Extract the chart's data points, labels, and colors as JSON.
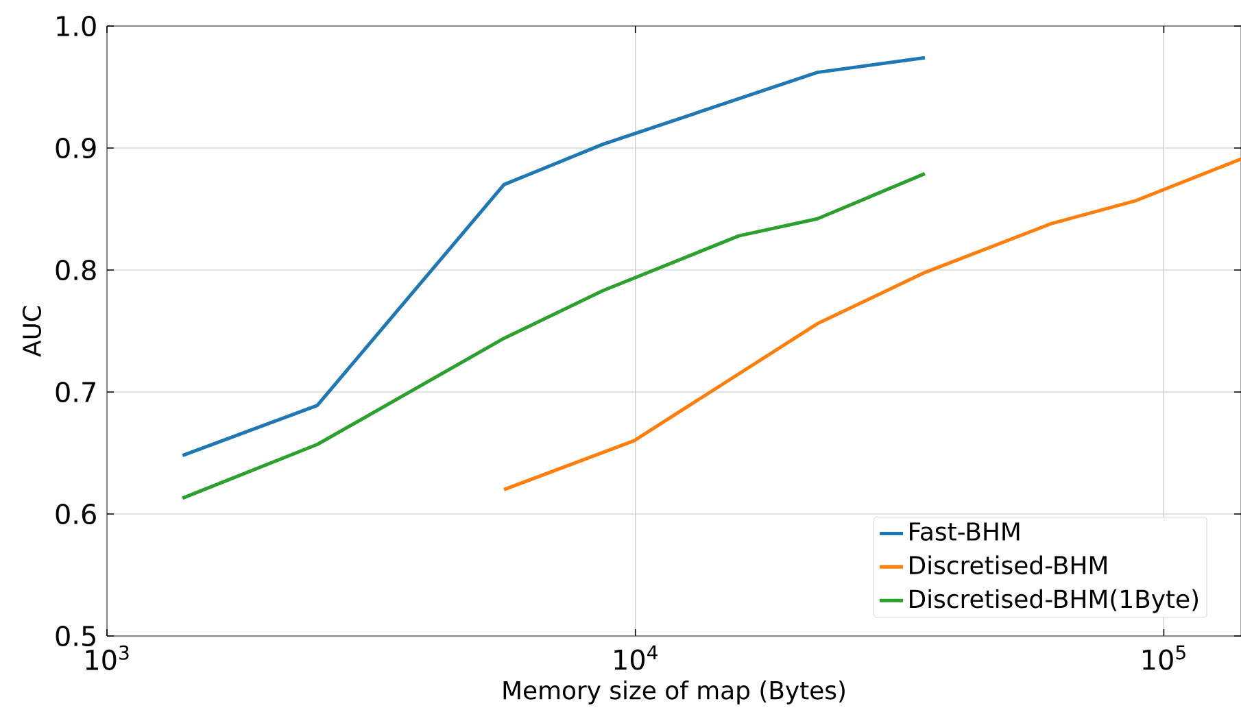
{
  "chart_data": {
    "type": "line",
    "xlabel": "Memory size of map (Bytes)",
    "ylabel": "AUC",
    "log": "x",
    "grid": true,
    "legend": "bottom right",
    "marker": "none",
    "line_style": "solid",
    "xlim": [
      1000,
      140000
    ],
    "ylim": [
      0.5,
      1.0
    ],
    "xticks": [
      {
        "value": 1000,
        "label": "10$^{3}$"
      },
      {
        "value": 10000,
        "label": "10$^{4}$"
      },
      {
        "value": 100000,
        "label": "10$^{5}$"
      }
    ],
    "yticks": [
      {
        "value": 0.5,
        "label": "0.5"
      },
      {
        "value": 0.6,
        "label": "0.6"
      },
      {
        "value": 0.7,
        "label": "0.7"
      },
      {
        "value": 0.8,
        "label": "0.8"
      },
      {
        "value": 0.9,
        "label": "0.9"
      },
      {
        "value": 1.0,
        "label": "1.0"
      }
    ],
    "series": [
      {
        "name": "Fast-BHM",
        "color": "#1f77b4",
        "x": [
          1390,
          2500,
          5640,
          8670,
          22100,
          35300
        ],
        "values": [
          0.648,
          0.689,
          0.87,
          0.903,
          0.962,
          0.974
        ]
      },
      {
        "name": "Discretised-BHM",
        "color": "#ff7f0e",
        "x": [
          5640,
          9940,
          22100,
          35300,
          61200,
          88700,
          140000
        ],
        "values": [
          0.62,
          0.66,
          0.756,
          0.798,
          0.838,
          0.857,
          0.891
        ]
      },
      {
        "name": "Discretised-BHM(1Byte)",
        "color": "#2ca02c",
        "x": [
          1390,
          2500,
          5640,
          8670,
          15700,
          22100,
          35300
        ],
        "values": [
          0.613,
          0.657,
          0.744,
          0.783,
          0.828,
          0.842,
          0.879
        ]
      }
    ]
  }
}
